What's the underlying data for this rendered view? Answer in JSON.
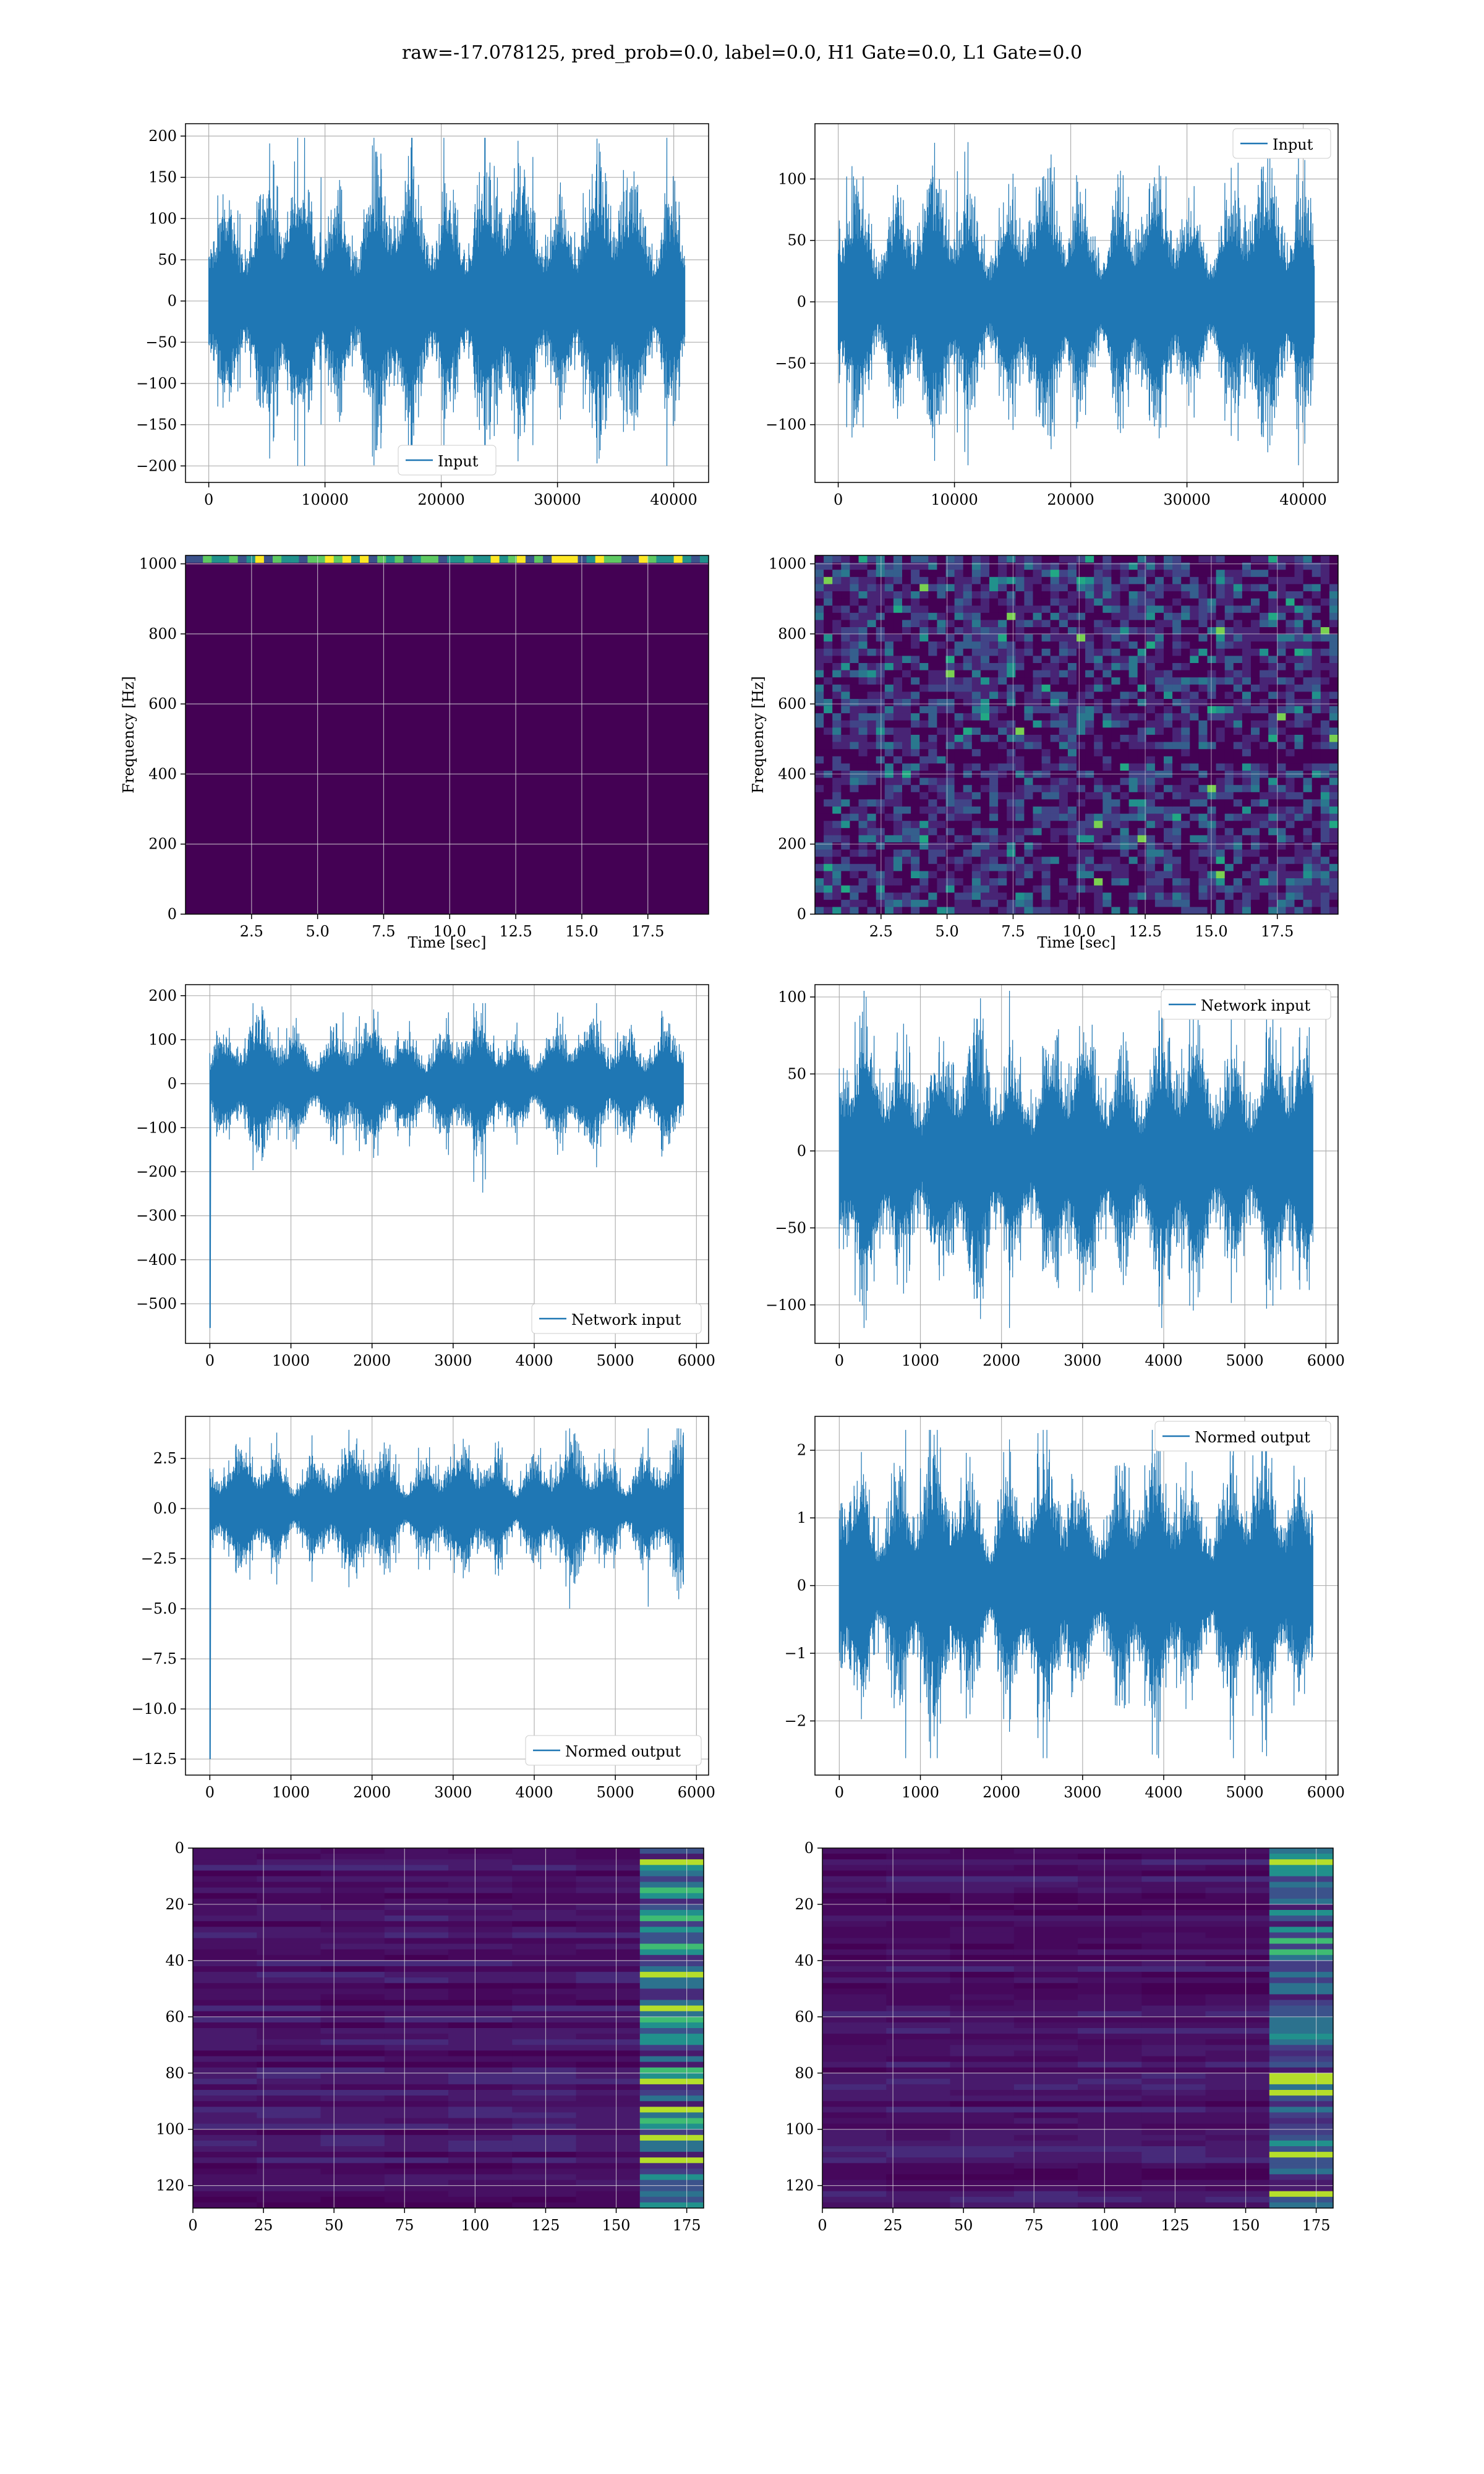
{
  "figure": {
    "title": "raw=-17.078125, pred_prob=0.0, label=0.0, H1 Gate=0.0, L1 Gate=0.0"
  },
  "colors": {
    "line": "#1f77b4",
    "grid": "#b0b0b0",
    "viridis_low": "#440154",
    "viridis_mid": "#21918c",
    "viridis_high": "#fde725"
  },
  "chart_data": [
    {
      "type": "line",
      "name": "input-left",
      "xlim": [
        -2000,
        43000
      ],
      "ylim": [
        -220,
        215
      ],
      "xticks": [
        0,
        10000,
        20000,
        30000,
        40000
      ],
      "yticks": [
        -200,
        -150,
        -100,
        -50,
        0,
        50,
        100,
        150,
        200
      ],
      "series": [
        {
          "name": "Input",
          "x_range": [
            0,
            40960
          ],
          "envelope": [
            -200,
            198
          ]
        }
      ],
      "legend": "lower center",
      "grid": true
    },
    {
      "type": "line",
      "name": "input-right",
      "xlim": [
        -2000,
        43000
      ],
      "ylim": [
        -147,
        145
      ],
      "xticks": [
        0,
        10000,
        20000,
        30000,
        40000
      ],
      "yticks": [
        -100,
        -50,
        0,
        50,
        100
      ],
      "series": [
        {
          "name": "Input",
          "x_range": [
            0,
            40960
          ],
          "envelope": [
            -133,
            130
          ]
        }
      ],
      "legend": "upper right",
      "grid": true
    },
    {
      "type": "heatmap",
      "name": "spectrogram-left",
      "xlim": [
        0,
        19.8
      ],
      "ylim": [
        0,
        1024
      ],
      "xticks": [
        "2.5",
        "5.0",
        "7.5",
        "10.0",
        "12.5",
        "15.0",
        "17.5"
      ],
      "yticks": [
        "0",
        "200",
        "400",
        "600",
        "800",
        "1000"
      ],
      "xlabel": "Time [sec]",
      "ylabel": "Frequency [Hz]",
      "grid": true
    },
    {
      "type": "heatmap",
      "name": "spectrogram-right",
      "xlim": [
        0,
        19.8
      ],
      "ylim": [
        0,
        1024
      ],
      "xticks": [
        "2.5",
        "5.0",
        "7.5",
        "10.0",
        "12.5",
        "15.0",
        "17.5"
      ],
      "yticks": [
        "0",
        "200",
        "400",
        "600",
        "800",
        "1000"
      ],
      "xlabel": "Time [sec]",
      "ylabel": "Frequency [Hz]",
      "grid": true
    },
    {
      "type": "line",
      "name": "network-input-left",
      "xlim": [
        -300,
        6150
      ],
      "ylim": [
        -590,
        225
      ],
      "xticks": [
        0,
        1000,
        2000,
        3000,
        4000,
        5000,
        6000
      ],
      "yticks": [
        -500,
        -400,
        -300,
        -200,
        -100,
        0,
        100,
        200
      ],
      "series": [
        {
          "name": "Network input",
          "x_range": [
            0,
            5840
          ],
          "envelope": [
            -555,
            183
          ]
        }
      ],
      "legend": "lower right",
      "grid": true
    },
    {
      "type": "line",
      "name": "network-input-right",
      "xlim": [
        -300,
        6150
      ],
      "ylim": [
        -125,
        108
      ],
      "xticks": [
        0,
        1000,
        2000,
        3000,
        4000,
        5000,
        6000
      ],
      "yticks": [
        -100,
        -50,
        0,
        50,
        100
      ],
      "series": [
        {
          "name": "Network input",
          "x_range": [
            0,
            5840
          ],
          "envelope": [
            -115,
            104
          ]
        }
      ],
      "legend": "upper right",
      "grid": true
    },
    {
      "type": "line",
      "name": "normed-output-left",
      "xlim": [
        -300,
        6150
      ],
      "ylim": [
        -13.3,
        4.6
      ],
      "xticks": [
        0,
        1000,
        2000,
        3000,
        4000,
        5000,
        6000
      ],
      "yticks": [
        "-12.5",
        "-10.0",
        "-7.5",
        "-5.0",
        "-2.5",
        "0.0",
        "2.5"
      ],
      "series": [
        {
          "name": "Normed output",
          "x_range": [
            0,
            5840
          ],
          "envelope": [
            -12.5,
            4.0
          ]
        }
      ],
      "legend": "lower right",
      "grid": true
    },
    {
      "type": "line",
      "name": "normed-output-right",
      "xlim": [
        -300,
        6150
      ],
      "ylim": [
        -2.8,
        2.5
      ],
      "xticks": [
        0,
        1000,
        2000,
        3000,
        4000,
        5000,
        6000
      ],
      "yticks": [
        -2,
        -1,
        0,
        1,
        2
      ],
      "series": [
        {
          "name": "Normed output",
          "x_range": [
            0,
            5840
          ],
          "envelope": [
            -2.55,
            2.3
          ]
        }
      ],
      "legend": "upper right",
      "grid": true
    },
    {
      "type": "heatmap",
      "name": "feature-map-left",
      "xlim": [
        0,
        181
      ],
      "ylim": [
        128,
        0
      ],
      "xticks": [
        "0",
        "25",
        "50",
        "75",
        "100",
        "125",
        "150",
        "175"
      ],
      "yticks": [
        "0",
        "20",
        "40",
        "60",
        "80",
        "100",
        "120"
      ],
      "grid": true
    },
    {
      "type": "heatmap",
      "name": "feature-map-right",
      "xlim": [
        0,
        181
      ],
      "ylim": [
        128,
        0
      ],
      "xticks": [
        "0",
        "25",
        "50",
        "75",
        "100",
        "125",
        "150",
        "175"
      ],
      "yticks": [
        "0",
        "20",
        "40",
        "60",
        "80",
        "100",
        "120"
      ],
      "grid": true
    }
  ]
}
